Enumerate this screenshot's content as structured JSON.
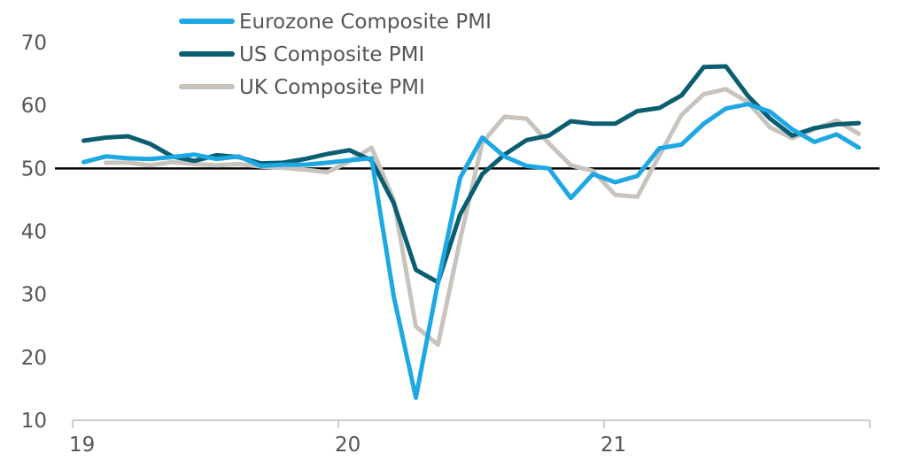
{
  "chart_data": {
    "type": "line",
    "title": "",
    "xlabel": "",
    "ylabel": "",
    "ylim": [
      10,
      70
    ],
    "yticks": [
      10,
      20,
      30,
      40,
      50,
      60,
      70
    ],
    "xlim": [
      0,
      36
    ],
    "xticks": [
      {
        "x": 0,
        "label": "19"
      },
      {
        "x": 12,
        "label": "20"
      },
      {
        "x": 24,
        "label": "21"
      }
    ],
    "reference_line": 50,
    "grid": false,
    "legend_position": "top-center",
    "series": [
      {
        "name": "Eurozone Composite PMI",
        "color": "#1EA8E3",
        "x": [
          0.5,
          1.5,
          2.5,
          3.5,
          4.5,
          5.5,
          6.5,
          7.5,
          8.5,
          9.5,
          10.5,
          11.5,
          12.5,
          13.5,
          14.5,
          15.5,
          16.5,
          17.5,
          18.5,
          19.5,
          20.5,
          21.5,
          22.5,
          23.5,
          24.5,
          25.5,
          26.5,
          27.5,
          28.5,
          29.5,
          30.5,
          31.5,
          32.5,
          33.5,
          34.5,
          35.5
        ],
        "values": [
          51.0,
          51.9,
          51.6,
          51.5,
          51.8,
          52.2,
          51.5,
          51.9,
          50.4,
          50.6,
          50.6,
          50.9,
          51.3,
          51.6,
          29.7,
          13.6,
          31.9,
          48.5,
          54.9,
          51.9,
          50.4,
          50.0,
          45.3,
          49.1,
          47.8,
          48.8,
          53.2,
          53.8,
          57.1,
          59.5,
          60.2,
          59.0,
          56.2,
          54.2,
          55.4,
          53.3
        ]
      },
      {
        "name": "US Composite PMI",
        "color": "#0A5E72",
        "x": [
          0.5,
          1.5,
          2.5,
          3.5,
          4.5,
          5.5,
          6.5,
          7.5,
          8.5,
          9.5,
          10.5,
          11.5,
          12.5,
          13.5,
          14.5,
          15.5,
          16.5,
          17.5,
          18.5,
          19.5,
          20.5,
          21.5,
          22.5,
          23.5,
          24.5,
          25.5,
          26.5,
          27.5,
          28.5,
          29.5,
          30.5,
          31.5,
          32.5,
          33.5,
          34.5,
          35.5
        ],
        "values": [
          54.4,
          54.9,
          55.1,
          53.9,
          51.9,
          51.2,
          52.1,
          51.8,
          50.8,
          50.9,
          51.5,
          52.3,
          52.9,
          51.3,
          44.5,
          33.9,
          31.9,
          42.7,
          49.1,
          52.2,
          54.5,
          55.2,
          57.5,
          57.1,
          57.1,
          59.1,
          59.6,
          61.6,
          66.1,
          66.2,
          61.5,
          57.9,
          55.2,
          56.4,
          57.0,
          57.2
        ]
      },
      {
        "name": "UK Composite PMI",
        "color": "#C9C3BD",
        "x": [
          1.5,
          2.5,
          3.5,
          4.5,
          5.5,
          6.5,
          7.5,
          8.5,
          9.5,
          10.5,
          11.5,
          12.5,
          13.5,
          14.5,
          15.5,
          16.5,
          17.5,
          18.5,
          19.5,
          20.5,
          21.5,
          22.5,
          23.5,
          24.5,
          25.5,
          26.5,
          27.5,
          28.5,
          29.5,
          30.5,
          31.5,
          32.5,
          33.5,
          34.5,
          35.5
        ],
        "values": [
          50.9,
          50.9,
          50.5,
          51.0,
          50.7,
          50.5,
          50.7,
          50.3,
          50.1,
          49.8,
          49.4,
          51.1,
          53.3,
          45.0,
          24.9,
          22.0,
          38.7,
          54.1,
          58.2,
          57.9,
          54.0,
          50.5,
          49.6,
          45.8,
          45.5,
          52.1,
          58.5,
          61.8,
          62.6,
          60.5,
          56.5,
          54.8,
          56.2,
          57.6,
          55.5
        ]
      }
    ]
  }
}
